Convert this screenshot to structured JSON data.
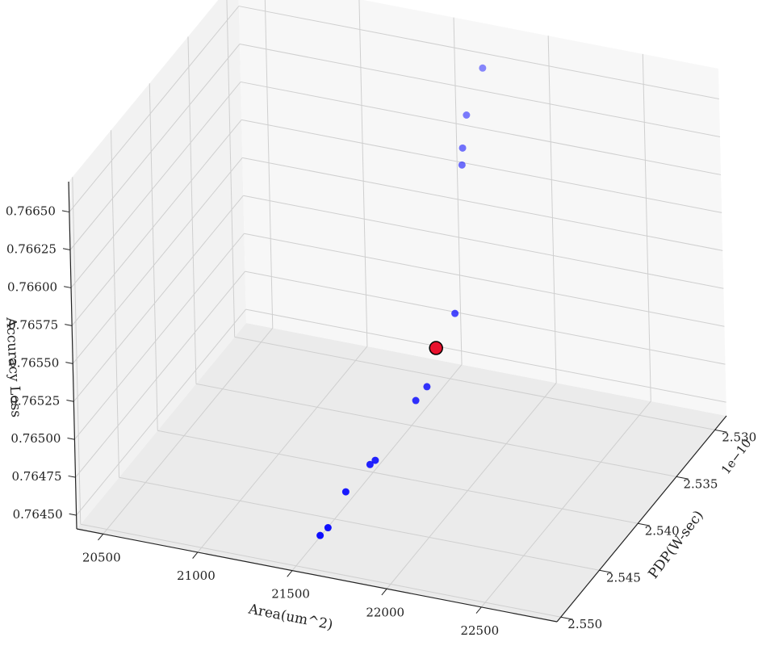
{
  "chart_data": {
    "type": "scatter3d",
    "x_label": "Area(um^2)",
    "y_label": "PDP(W-sec)",
    "z_label": "Accuracy Loss",
    "y_offset_label": "1e−10",
    "xlim": [
      20360,
      22900
    ],
    "xticks": [
      20500,
      21000,
      21500,
      22000,
      22500
    ],
    "ylim": [
      2.5285,
      2.5505
    ],
    "yticks": [
      {
        "value": 2.53,
        "label": "2.530"
      },
      2.535,
      {
        "value": 2.54,
        "label": "2.540"
      },
      2.545,
      {
        "value": 2.55,
        "label": "2.550"
      }
    ],
    "zlim": [
      0.76441,
      0.7667
    ],
    "zticks": [
      {
        "value": 0.7645,
        "label": "0.76450"
      },
      0.76475,
      {
        "value": 0.765,
        "label": "0.76500"
      },
      0.76525,
      {
        "value": 0.7655,
        "label": "0.76550"
      },
      0.76575,
      {
        "value": 0.766,
        "label": "0.76600"
      },
      0.76625,
      {
        "value": 0.7665,
        "label": "0.76650"
      }
    ],
    "grid": true,
    "depthshade": true,
    "series": [
      {
        "color": "#0000ff",
        "x": [
          21560,
          21590,
          21630,
          21720,
          21740,
          21870,
          21910,
          21950,
          21770,
          21750,
          21720,
          21740
        ],
        "y": [
          2.5483,
          2.548,
          2.5466,
          2.5456,
          2.5454,
          2.5432,
          2.5427,
          2.5399,
          2.5343,
          2.5337,
          2.5324,
          2.5307
        ],
        "z": [
          0.76452,
          0.76456,
          0.76472,
          0.76486,
          0.76488,
          0.76517,
          0.76524,
          0.76556,
          0.76615,
          0.76622,
          0.76635,
          0.76656
        ]
      },
      {
        "color": "#e8112d",
        "edgecolor": "#000000",
        "x": [
          21900
        ],
        "y": [
          2.5412
        ],
        "z": [
          0.7654
        ]
      }
    ]
  }
}
